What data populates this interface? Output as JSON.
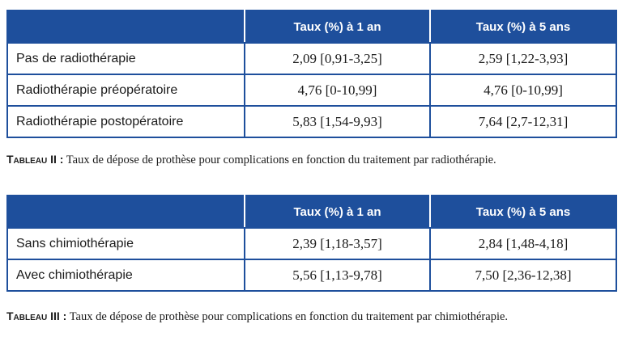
{
  "table_radio": {
    "headers": [
      "",
      "Taux (%) à 1 an",
      "Taux (%) à 5 ans"
    ],
    "rows": [
      {
        "label": "Pas de radiothérapie",
        "one_year": "2,09 [0,91-3,25]",
        "five_years": "2,59 [1,22-3,93]"
      },
      {
        "label": "Radiothérapie préopératoire",
        "one_year": "4,76 [0-10,99]",
        "five_years": "4,76 [0-10,99]"
      },
      {
        "label": "Radiothérapie postopératoire",
        "one_year": "5,83 [1,54-9,93]",
        "five_years": "7,64 [2,7-12,31]"
      }
    ],
    "caption_tag": "Tableau II :",
    "caption_text": " Taux de dépose de prothèse pour complications en fonction du traitement par radiothérapie."
  },
  "table_chimio": {
    "headers": [
      "",
      "Taux (%) à 1 an",
      "Taux (%) à 5 ans"
    ],
    "rows": [
      {
        "label": "Sans chimiothérapie",
        "one_year": "2,39 [1,18-3,57]",
        "five_years": "2,84 [1,48-4,18]"
      },
      {
        "label": "Avec chimiothérapie",
        "one_year": "5,56 [1,13-9,78]",
        "five_years": "7,50 [2,36-12,38]"
      }
    ],
    "caption_tag": "Tableau III :",
    "caption_text": " Taux de dépose de prothèse pour complications en fonction du traitement par chimiothérapie."
  },
  "colors": {
    "header_background": "#1e4f9c",
    "header_text": "#ffffff",
    "border": "#1e4f9c"
  }
}
